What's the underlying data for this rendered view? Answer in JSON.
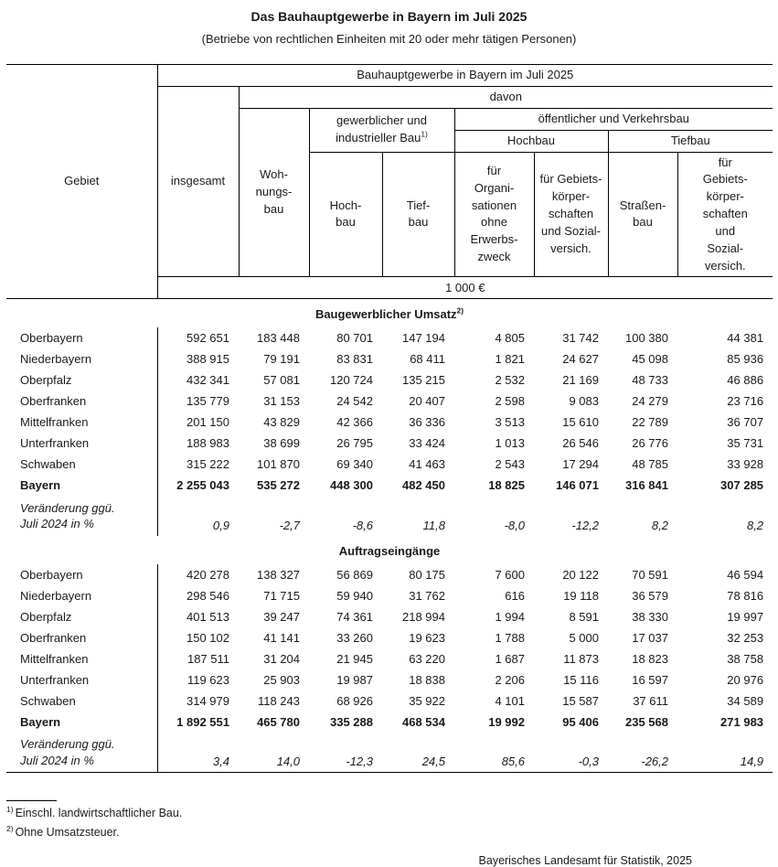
{
  "page": {
    "title": "Das Bauhauptgewerbe in Bayern im Juli 2025",
    "subtitle": "(Betriebe von rechtlichen Einheiten mit 20 oder mehr tätigen Personen)"
  },
  "table": {
    "header": {
      "top": "Bauhauptgewerbe in Bayern im Juli 2025",
      "davon": "davon",
      "gebiet": "Gebiet",
      "insgesamt": "insgesamt",
      "wohnungsbau": "Woh-\nnungs-\nbau",
      "gewerblich": "gewerblicher und\nindustrieller Bau",
      "gewerblich_sup": "1)",
      "oeffentlich": "öffentlicher und Verkehrsbau",
      "hochbau_group": "Hochbau",
      "tiefbau_group": "Tiefbau",
      "hochbau": "Hoch-\nbau",
      "tiefbau": "Tief-\nbau",
      "fuer_organisationen": "für\nOrgani-\nsationen\nohne\nErwerbs-\nzweck",
      "fuer_gebiets_hochbau": "für Gebiets-\nkörper-\nschaften\nund Sozial-\nversich.",
      "strassenbau": "Straßen-\nbau",
      "fuer_gebiets_tiefbau": "für\nGebiets-\nkörper-\nschaften\nund\nSozial-\nversich.",
      "unit": "1 000 €"
    },
    "sections": [
      {
        "title": "Baugewerblicher Umsatz",
        "title_sup": "2)",
        "rows": [
          {
            "label": "Oberbayern",
            "values": [
              "592 651",
              "183 448",
              "80 701",
              "147 194",
              "4 805",
              "31 742",
              "100 380",
              "44 381"
            ]
          },
          {
            "label": "Niederbayern",
            "values": [
              "388 915",
              "79 191",
              "83 831",
              "68 411",
              "1 821",
              "24 627",
              "45 098",
              "85 936"
            ]
          },
          {
            "label": "Oberpfalz",
            "values": [
              "432 341",
              "57 081",
              "120 724",
              "135 215",
              "2 532",
              "21 169",
              "48 733",
              "46 886"
            ]
          },
          {
            "label": "Oberfranken",
            "values": [
              "135 779",
              "31 153",
              "24 542",
              "20 407",
              "2 598",
              "9 083",
              "24 279",
              "23 716"
            ]
          },
          {
            "label": "Mittelfranken",
            "values": [
              "201 150",
              "43 829",
              "42 366",
              "36 336",
              "3 513",
              "15 610",
              "22 789",
              "36 707"
            ]
          },
          {
            "label": "Unterfranken",
            "values": [
              "188 983",
              "38 699",
              "26 795",
              "33 424",
              "1 013",
              "26 546",
              "26 776",
              "35 731"
            ]
          },
          {
            "label": "Schwaben",
            "values": [
              "315 222",
              "101 870",
              "69 340",
              "41 463",
              "2 543",
              "17 294",
              "48 785",
              "33 928"
            ]
          },
          {
            "label": "Bayern",
            "bold": true,
            "values": [
              "2 255 043",
              "535 272",
              "448 300",
              "482 450",
              "18 825",
              "146 071",
              "316 841",
              "307 285"
            ]
          },
          {
            "label": "Veränderung ggü.\nJuli 2024 in %",
            "italic": true,
            "values": [
              "0,9",
              "-2,7",
              "-8,6",
              "11,8",
              "-8,0",
              "-12,2",
              "8,2",
              "8,2"
            ]
          }
        ]
      },
      {
        "title": "Auftragseingänge",
        "title_sup": "",
        "rows": [
          {
            "label": "Oberbayern",
            "values": [
              "420 278",
              "138 327",
              "56 869",
              "80 175",
              "7 600",
              "20 122",
              "70 591",
              "46 594"
            ]
          },
          {
            "label": "Niederbayern",
            "values": [
              "298 546",
              "71 715",
              "59 940",
              "31 762",
              "616",
              "19 118",
              "36 579",
              "78 816"
            ]
          },
          {
            "label": "Oberpfalz",
            "values": [
              "401 513",
              "39 247",
              "74 361",
              "218 994",
              "1 994",
              "8 591",
              "38 330",
              "19 997"
            ]
          },
          {
            "label": "Oberfranken",
            "values": [
              "150 102",
              "41 141",
              "33 260",
              "19 623",
              "1 788",
              "5 000",
              "17 037",
              "32 253"
            ]
          },
          {
            "label": "Mittelfranken",
            "values": [
              "187 511",
              "31 204",
              "21 945",
              "63 220",
              "1 687",
              "11 873",
              "18 823",
              "38 758"
            ]
          },
          {
            "label": "Unterfranken",
            "values": [
              "119 623",
              "25 903",
              "19 987",
              "18 838",
              "2 206",
              "15 116",
              "16 597",
              "20 976"
            ]
          },
          {
            "label": "Schwaben",
            "values": [
              "314 979",
              "118 243",
              "68 926",
              "35 922",
              "4 101",
              "15 587",
              "37 611",
              "34 589"
            ]
          },
          {
            "label": "Bayern",
            "bold": true,
            "values": [
              "1 892 551",
              "465 780",
              "335 288",
              "468 534",
              "19 992",
              "95 406",
              "235 568",
              "271 983"
            ]
          },
          {
            "label": "Veränderung ggü.\nJuli 2024 in %",
            "italic": true,
            "values": [
              "3,4",
              "14,0",
              "-12,3",
              "24,5",
              "85,6",
              "-0,3",
              "-26,2",
              "14,9"
            ]
          }
        ]
      }
    ]
  },
  "footnotes": [
    {
      "sup": "1)",
      "text": "Einschl. landwirtschaftlicher Bau."
    },
    {
      "sup": "2)",
      "text": "Ohne Umsatzsteuer."
    }
  ],
  "source": "Bayerisches Landesamt für Statistik, 2025"
}
